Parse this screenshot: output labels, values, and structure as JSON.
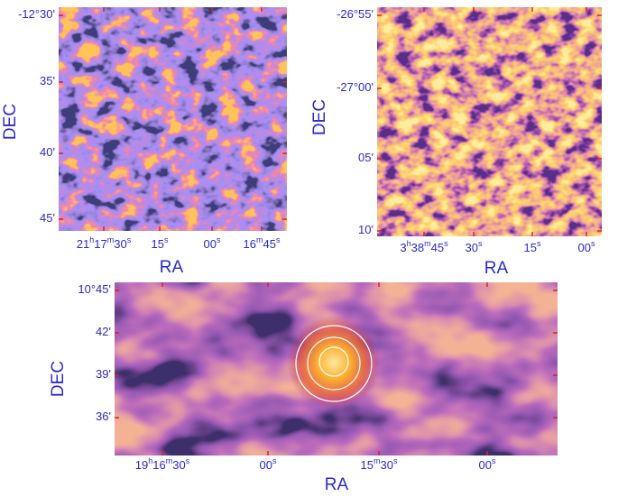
{
  "panels": [
    {
      "xlabel": "RA",
      "ylabel": "DEC",
      "xticks": [
        "21h17m30s",
        "15s",
        "00s",
        "16m45s"
      ],
      "yticks": [
        "-12°30'",
        "35'",
        "40'",
        "45'"
      ]
    },
    {
      "xlabel": "RA",
      "ylabel": "DEC",
      "xticks": [
        "3h38m45s",
        "30s",
        "15s",
        "00s"
      ],
      "yticks": [
        "-26°55'",
        "-27°00'",
        "05'",
        "10'"
      ]
    },
    {
      "xlabel": "RA",
      "ylabel": "DEC",
      "xticks": [
        "19h16m30s",
        "00s",
        "15m30s",
        "00s"
      ],
      "yticks": [
        "10°45'",
        "42'",
        "39'",
        "36'"
      ]
    }
  ]
}
